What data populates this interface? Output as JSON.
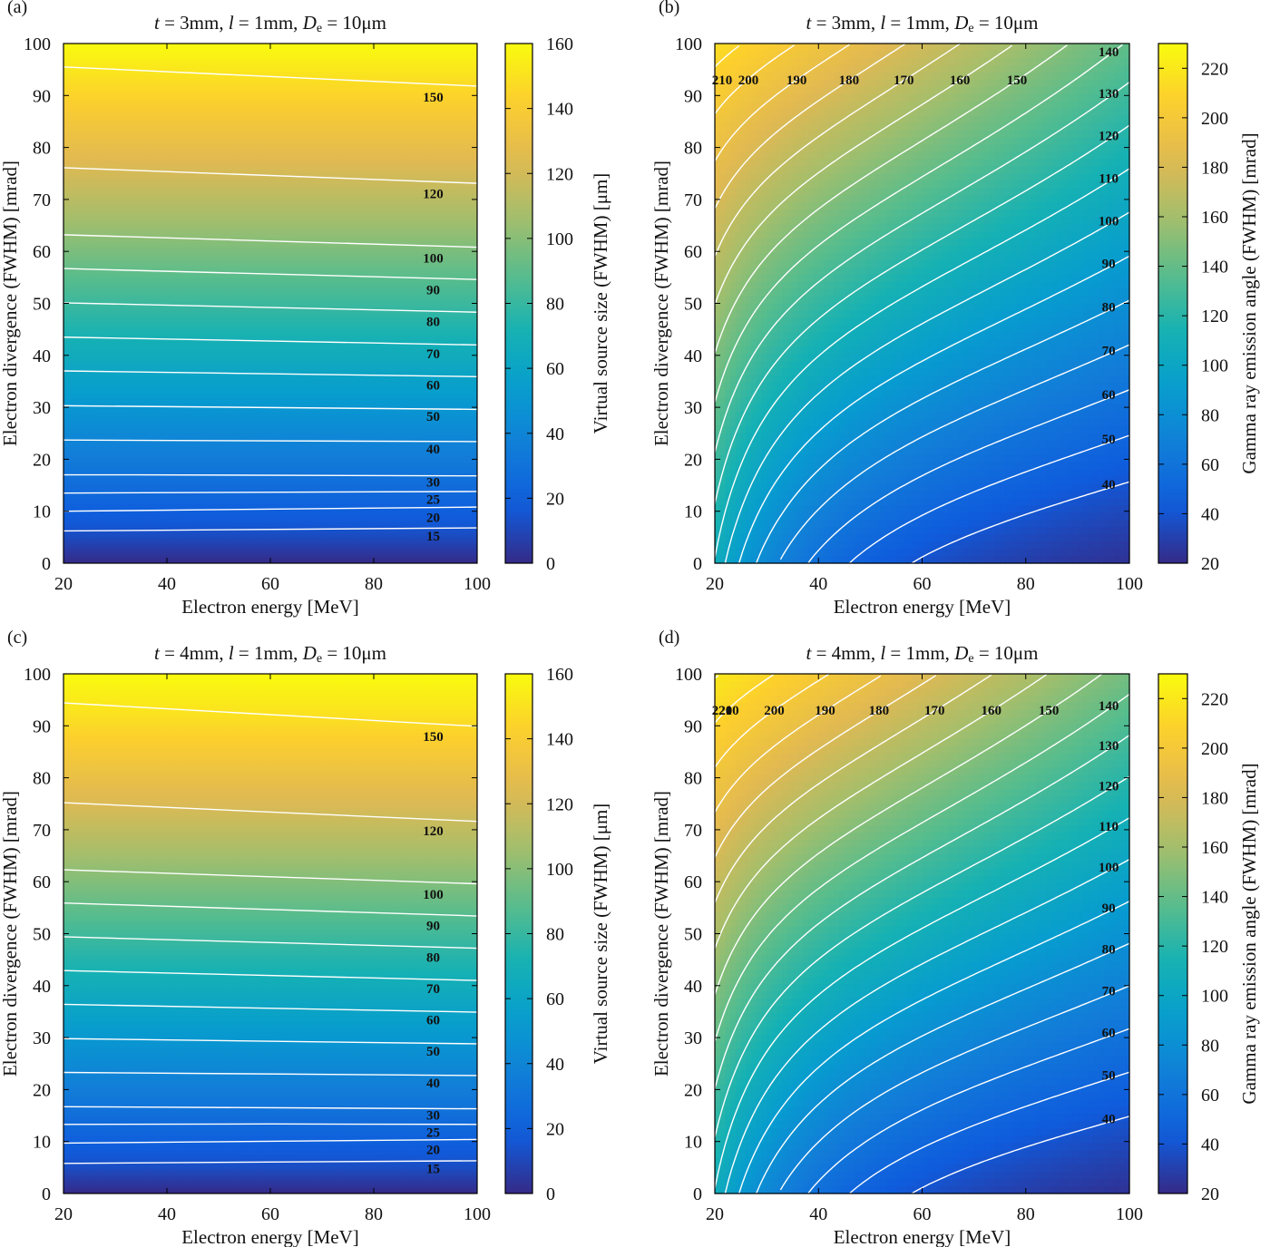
{
  "figure": {
    "panels": [
      {
        "id": "a",
        "label": "(a)",
        "title_t": "t",
        "title_a": " = 3mm, ",
        "title_l": "l",
        "title_b": " = 1mm, ",
        "title_D": "D",
        "title_sub": "e",
        "title_c": " = 10μm",
        "colorbar_label": "Virtual source size (FWHM) [μm]"
      },
      {
        "id": "b",
        "label": "(b)",
        "title_t": "t",
        "title_a": " = 3mm, ",
        "title_l": "l",
        "title_b": " = 1mm, ",
        "title_D": "D",
        "title_sub": "e",
        "title_c": " = 10μm",
        "colorbar_label": "Gamma ray emission angle (FWHM) [mrad]"
      },
      {
        "id": "c",
        "label": "(c)",
        "title_t": "t",
        "title_a": " = 4mm, ",
        "title_l": "l",
        "title_b": " = 1mm, ",
        "title_D": "D",
        "title_sub": "e",
        "title_c": " = 10μm",
        "colorbar_label": "Virtual source size (FWHM) [μm]"
      },
      {
        "id": "d",
        "label": "(d)",
        "title_t": "t",
        "title_a": " = 4mm, ",
        "title_l": "l",
        "title_b": " = 1mm, ",
        "title_D": "D",
        "title_sub": "e",
        "title_c": " = 10μm",
        "colorbar_label": "Gamma ray emission angle (FWHM) [mrad]"
      }
    ]
  },
  "chart_data": [
    {
      "panel": "a",
      "type": "heatmap",
      "subtype": "contour",
      "xlabel": "Electron energy [MeV]",
      "ylabel": "Electron divergence (FWHM) [mrad]",
      "xlim": [
        20,
        100
      ],
      "ylim": [
        0,
        100
      ],
      "xticks": [
        20,
        40,
        60,
        80,
        100
      ],
      "yticks": [
        0,
        10,
        20,
        30,
        40,
        50,
        60,
        70,
        80,
        90,
        100
      ],
      "colormap": "parula",
      "clim": [
        0,
        160
      ],
      "cticks": [
        0,
        20,
        40,
        60,
        80,
        100,
        120,
        140,
        160
      ],
      "contour_levels": [
        {
          "level": 15,
          "y_at_x20": 6.2,
          "y_at_x100": 6.8,
          "label_y": 5.2
        },
        {
          "level": 20,
          "y_at_x20": 10.0,
          "y_at_x100": 10.8,
          "label_y": 8.8
        },
        {
          "level": 25,
          "y_at_x20": 13.5,
          "y_at_x100": 13.8,
          "label_y": 12.3
        },
        {
          "level": 30,
          "y_at_x20": 17.0,
          "y_at_x100": 16.8,
          "label_y": 15.6
        },
        {
          "level": 40,
          "y_at_x20": 23.7,
          "y_at_x100": 23.4,
          "label_y": 22.0
        },
        {
          "level": 50,
          "y_at_x20": 30.3,
          "y_at_x100": 29.6,
          "label_y": 28.3
        },
        {
          "level": 60,
          "y_at_x20": 37.0,
          "y_at_x100": 35.9,
          "label_y": 34.3
        },
        {
          "level": 70,
          "y_at_x20": 43.5,
          "y_at_x100": 42.0,
          "label_y": 40.3
        },
        {
          "level": 80,
          "y_at_x20": 50.1,
          "y_at_x100": 48.3,
          "label_y": 46.5
        },
        {
          "level": 90,
          "y_at_x20": 56.7,
          "y_at_x100": 54.6,
          "label_y": 52.6
        },
        {
          "level": 100,
          "y_at_x20": 63.2,
          "y_at_x100": 60.8,
          "label_y": 58.7
        },
        {
          "level": 120,
          "y_at_x20": 76.1,
          "y_at_x100": 73.1,
          "label_y": 71.1
        },
        {
          "level": 150,
          "y_at_x20": 95.5,
          "y_at_x100": 91.8,
          "label_y": 89.7
        }
      ]
    },
    {
      "panel": "b",
      "type": "heatmap",
      "subtype": "contour",
      "xlabel": "Electron energy [MeV]",
      "ylabel": "Electron divergence (FWHM) [mrad]",
      "xlim": [
        20,
        100
      ],
      "ylim": [
        0,
        100
      ],
      "xticks": [
        20,
        40,
        60,
        80,
        100
      ],
      "yticks": [
        0,
        10,
        20,
        30,
        40,
        50,
        60,
        70,
        80,
        90,
        100
      ],
      "colormap": "parula",
      "clim": [
        20,
        230
      ],
      "cticks": [
        20,
        40,
        60,
        80,
        100,
        120,
        140,
        160,
        180,
        200,
        220
      ],
      "contour_levels": [
        40,
        50,
        60,
        70,
        80,
        90,
        100,
        110,
        120,
        130,
        140,
        150,
        160,
        170,
        180,
        190,
        200,
        210
      ]
    },
    {
      "panel": "c",
      "type": "heatmap",
      "subtype": "contour",
      "xlabel": "Electron energy [MeV]",
      "ylabel": "Electron divergence (FWHM) [mrad]",
      "xlim": [
        20,
        100
      ],
      "ylim": [
        0,
        100
      ],
      "xticks": [
        20,
        40,
        60,
        80,
        100
      ],
      "yticks": [
        0,
        10,
        20,
        30,
        40,
        50,
        60,
        70,
        80,
        90,
        100
      ],
      "colormap": "parula",
      "clim": [
        0,
        160
      ],
      "cticks": [
        0,
        20,
        40,
        60,
        80,
        100,
        120,
        140,
        160
      ],
      "contour_levels": [
        {
          "level": 15,
          "y_at_x20": 5.8,
          "y_at_x100": 6.3,
          "label_y": 4.8
        },
        {
          "level": 20,
          "y_at_x20": 9.7,
          "y_at_x100": 10.4,
          "label_y": 8.5
        },
        {
          "level": 25,
          "y_at_x20": 13.3,
          "y_at_x100": 13.3,
          "label_y": 11.8
        },
        {
          "level": 30,
          "y_at_x20": 16.7,
          "y_at_x100": 16.3,
          "label_y": 15.1
        },
        {
          "level": 40,
          "y_at_x20": 23.3,
          "y_at_x100": 22.7,
          "label_y": 21.3
        },
        {
          "level": 50,
          "y_at_x20": 29.8,
          "y_at_x100": 28.8,
          "label_y": 27.4
        },
        {
          "level": 60,
          "y_at_x20": 36.4,
          "y_at_x100": 34.9,
          "label_y": 33.4
        },
        {
          "level": 70,
          "y_at_x20": 42.9,
          "y_at_x100": 41.0,
          "label_y": 39.4
        },
        {
          "level": 80,
          "y_at_x20": 49.4,
          "y_at_x100": 47.2,
          "label_y": 45.5
        },
        {
          "level": 90,
          "y_at_x20": 55.9,
          "y_at_x100": 53.4,
          "label_y": 51.6
        },
        {
          "level": 100,
          "y_at_x20": 62.3,
          "y_at_x100": 59.6,
          "label_y": 57.6
        },
        {
          "level": 120,
          "y_at_x20": 75.2,
          "y_at_x100": 71.6,
          "label_y": 69.8
        },
        {
          "level": 150,
          "y_at_x20": 94.4,
          "y_at_x100": 89.9,
          "label_y": 88.0
        }
      ]
    },
    {
      "panel": "d",
      "type": "heatmap",
      "subtype": "contour",
      "xlabel": "Electron energy [MeV]",
      "ylabel": "Electron divergence (FWHM) [mrad]",
      "xlim": [
        20,
        100
      ],
      "ylim": [
        0,
        100
      ],
      "xticks": [
        20,
        40,
        60,
        80,
        100
      ],
      "yticks": [
        0,
        10,
        20,
        30,
        40,
        50,
        60,
        70,
        80,
        90,
        100
      ],
      "colormap": "parula",
      "clim": [
        20,
        230
      ],
      "cticks": [
        20,
        40,
        60,
        80,
        100,
        120,
        140,
        160,
        180,
        200,
        220
      ],
      "contour_levels": [
        40,
        50,
        60,
        70,
        80,
        90,
        100,
        110,
        120,
        130,
        140,
        150,
        160,
        170,
        180,
        190,
        200,
        210,
        220
      ]
    }
  ]
}
